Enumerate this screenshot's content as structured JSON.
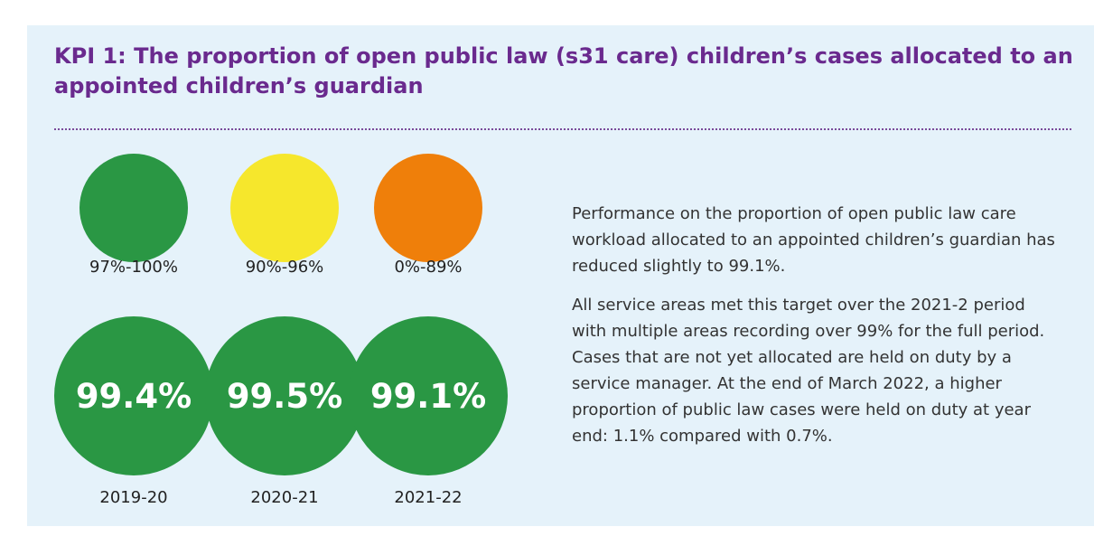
{
  "title": "KPI 1: The proportion of open public law (s31 care) children’s cases allocated to an appointed children’s guardian",
  "legend": [
    {
      "label": "97%-100%",
      "color": "#2a9744"
    },
    {
      "label": "90%-96%",
      "color": "#f6e72c"
    },
    {
      "label": "0%-89%",
      "color": "#ef7f0a"
    }
  ],
  "kpis": [
    {
      "value": "99.4%",
      "year": "2019-20",
      "color": "#2a9744"
    },
    {
      "value": "99.5%",
      "year": "2020-21",
      "color": "#2a9744"
    },
    {
      "value": "99.1%",
      "year": "2021-22",
      "color": "#2a9744"
    }
  ],
  "paragraphs": [
    "Performance on the proportion of open public law care workload allocated to an appointed children’s guardian has reduced slightly to 99.1%.",
    "All service areas met this target over the 2021-2 period with multiple areas recording over 99% for the full period. Cases that are not yet allocated are held on duty by a service manager. At the end of March 2022, a higher proportion of public law cases were held on duty at year end: 1.1% compared with 0.7%."
  ]
}
